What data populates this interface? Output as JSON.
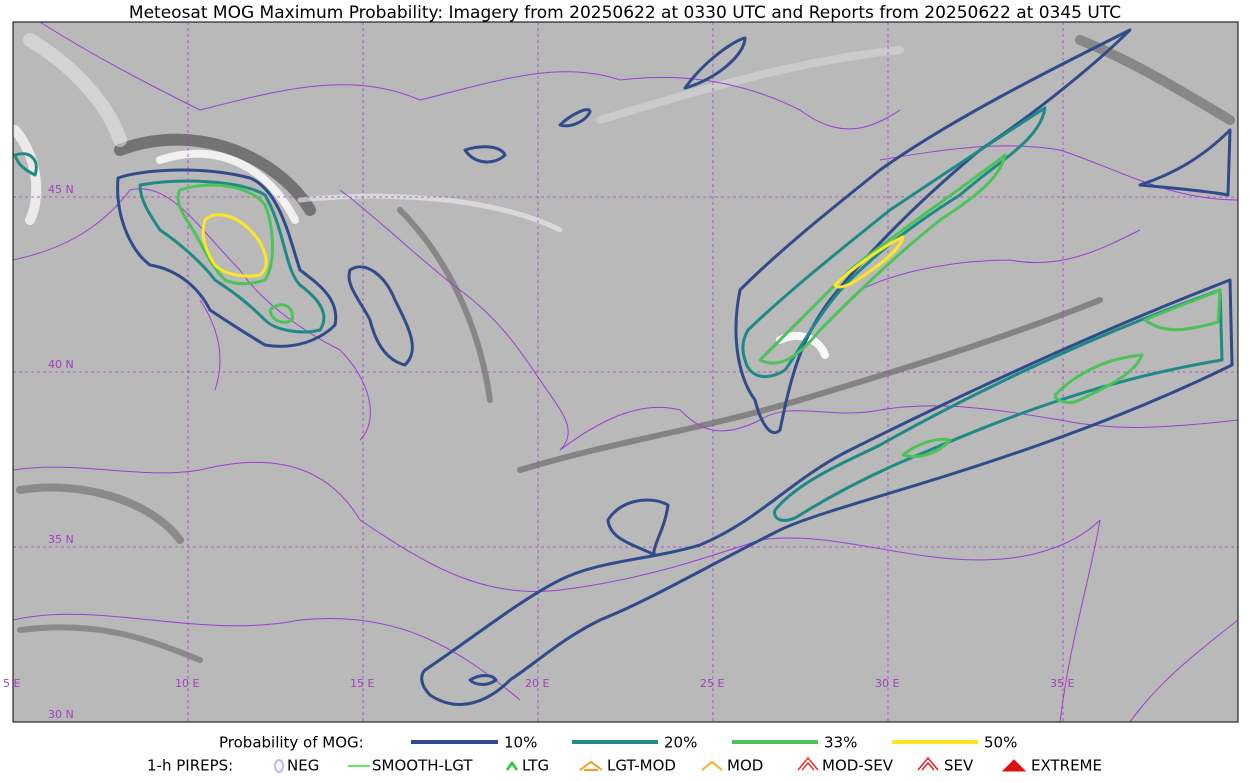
{
  "title": "Meteosat MOG Maximum Probability: Imagery from 20250622 at 0330 UTC and Reports from 20250622 at 0345 UTC",
  "map": {
    "lat_labels": [
      "45 N",
      "40 N",
      "35 N",
      "30 N"
    ],
    "lon_labels": [
      "5 E",
      "10 E",
      "15 E",
      "20 E",
      "25 E",
      "30 E",
      "35 E"
    ]
  },
  "legend": {
    "probability": {
      "label": "Probability of MOG:",
      "items": [
        {
          "label": "10%",
          "color": "#2f4b8a"
        },
        {
          "label": "20%",
          "color": "#1f8a85"
        },
        {
          "label": "33%",
          "color": "#4cc35a"
        },
        {
          "label": "50%",
          "color": "#fde725"
        }
      ]
    },
    "pireps": {
      "label": "1-h PIREPS:",
      "items": [
        "NEG",
        "SMOOTH-LGT",
        "LTG",
        "LGT-MOD",
        "MOD",
        "MOD-SEV",
        "SEV",
        "EXTREME"
      ]
    }
  }
}
